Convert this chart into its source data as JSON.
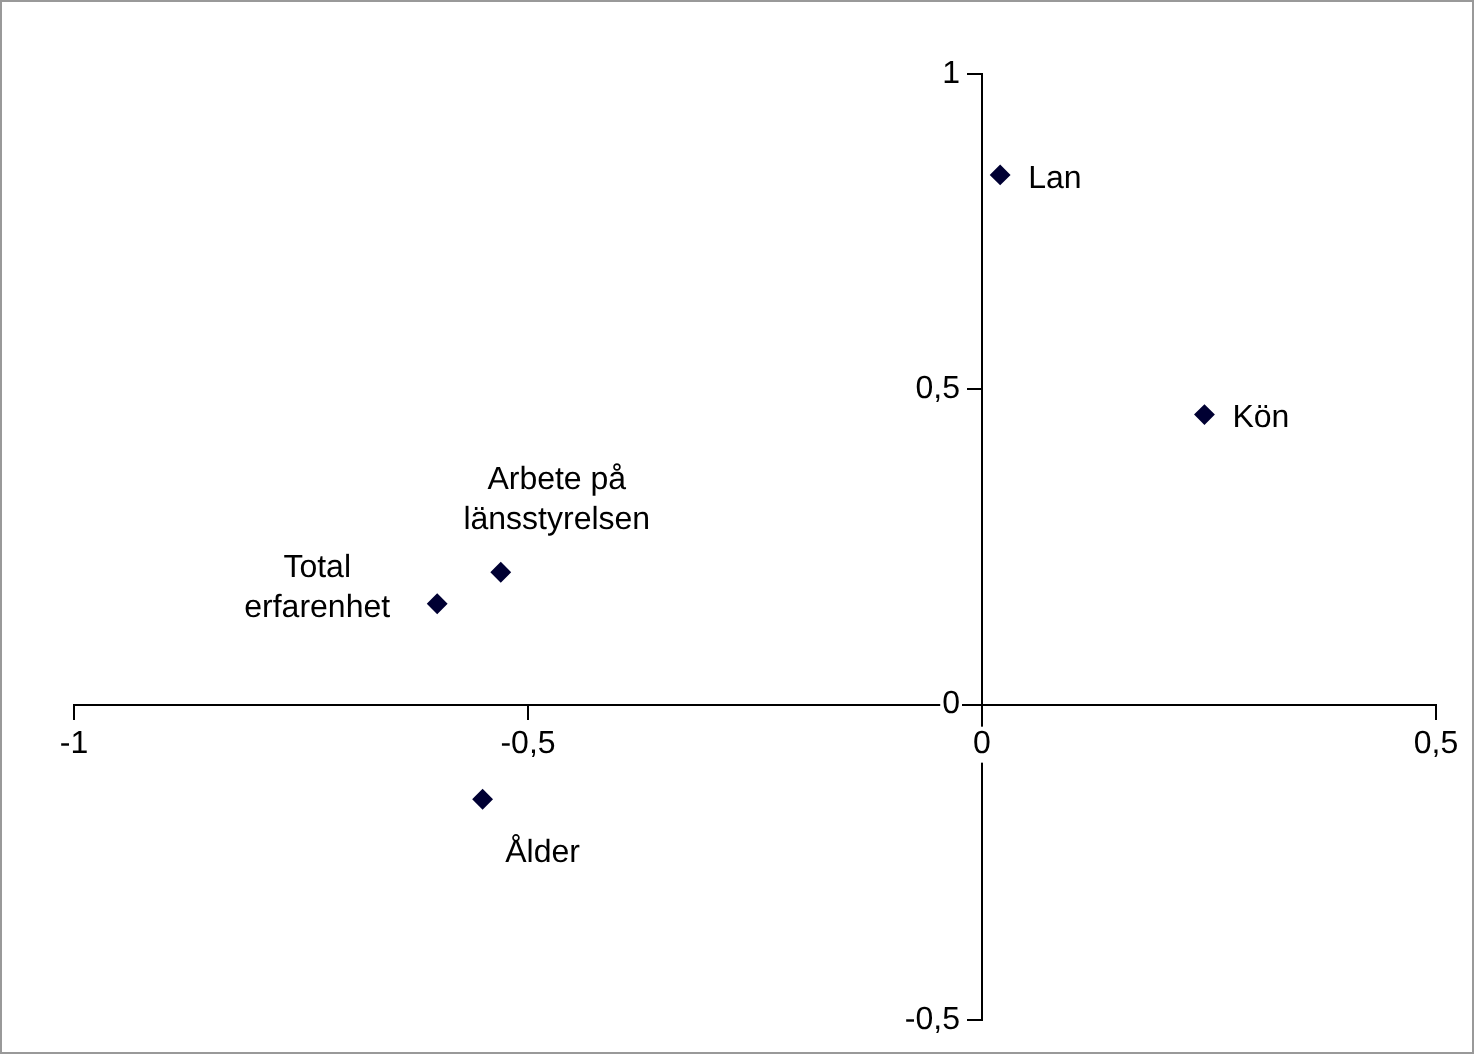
{
  "chart_data": {
    "type": "scatter",
    "x": [
      0.02,
      0.245,
      -0.53,
      -0.6,
      -0.55
    ],
    "series": [
      {
        "color": "#000033",
        "values": [
          0.84,
          0.46,
          0.21,
          0.16,
          -0.15
        ]
      }
    ],
    "marker": "diamond",
    "grid": false,
    "legend": false,
    "xlim": [
      -1,
      0.5
    ],
    "ylim": [
      -0.5,
      1
    ],
    "xticks": [
      -1,
      {
        "value": -0.5,
        "label": "-0,5"
      },
      0,
      {
        "value": 0.5,
        "label": "0,5"
      }
    ],
    "yticks": [
      {
        "value": -0.5,
        "label": "-0,5"
      },
      0,
      {
        "value": 0.5,
        "label": "0,5"
      },
      1
    ],
    "annotations": [
      {
        "text": "Lan",
        "x": 0.02,
        "y": 0.84
      },
      {
        "text": "Kön",
        "x": 0.245,
        "y": 0.46
      },
      {
        "text": "Arbete på\nlänsstyrelsen",
        "x": -0.53,
        "y": 0.21
      },
      {
        "text": "Total\nerfarenhet",
        "x": -0.6,
        "y": 0.16
      },
      {
        "text": "Ålder",
        "x": -0.55,
        "y": -0.15
      }
    ]
  }
}
